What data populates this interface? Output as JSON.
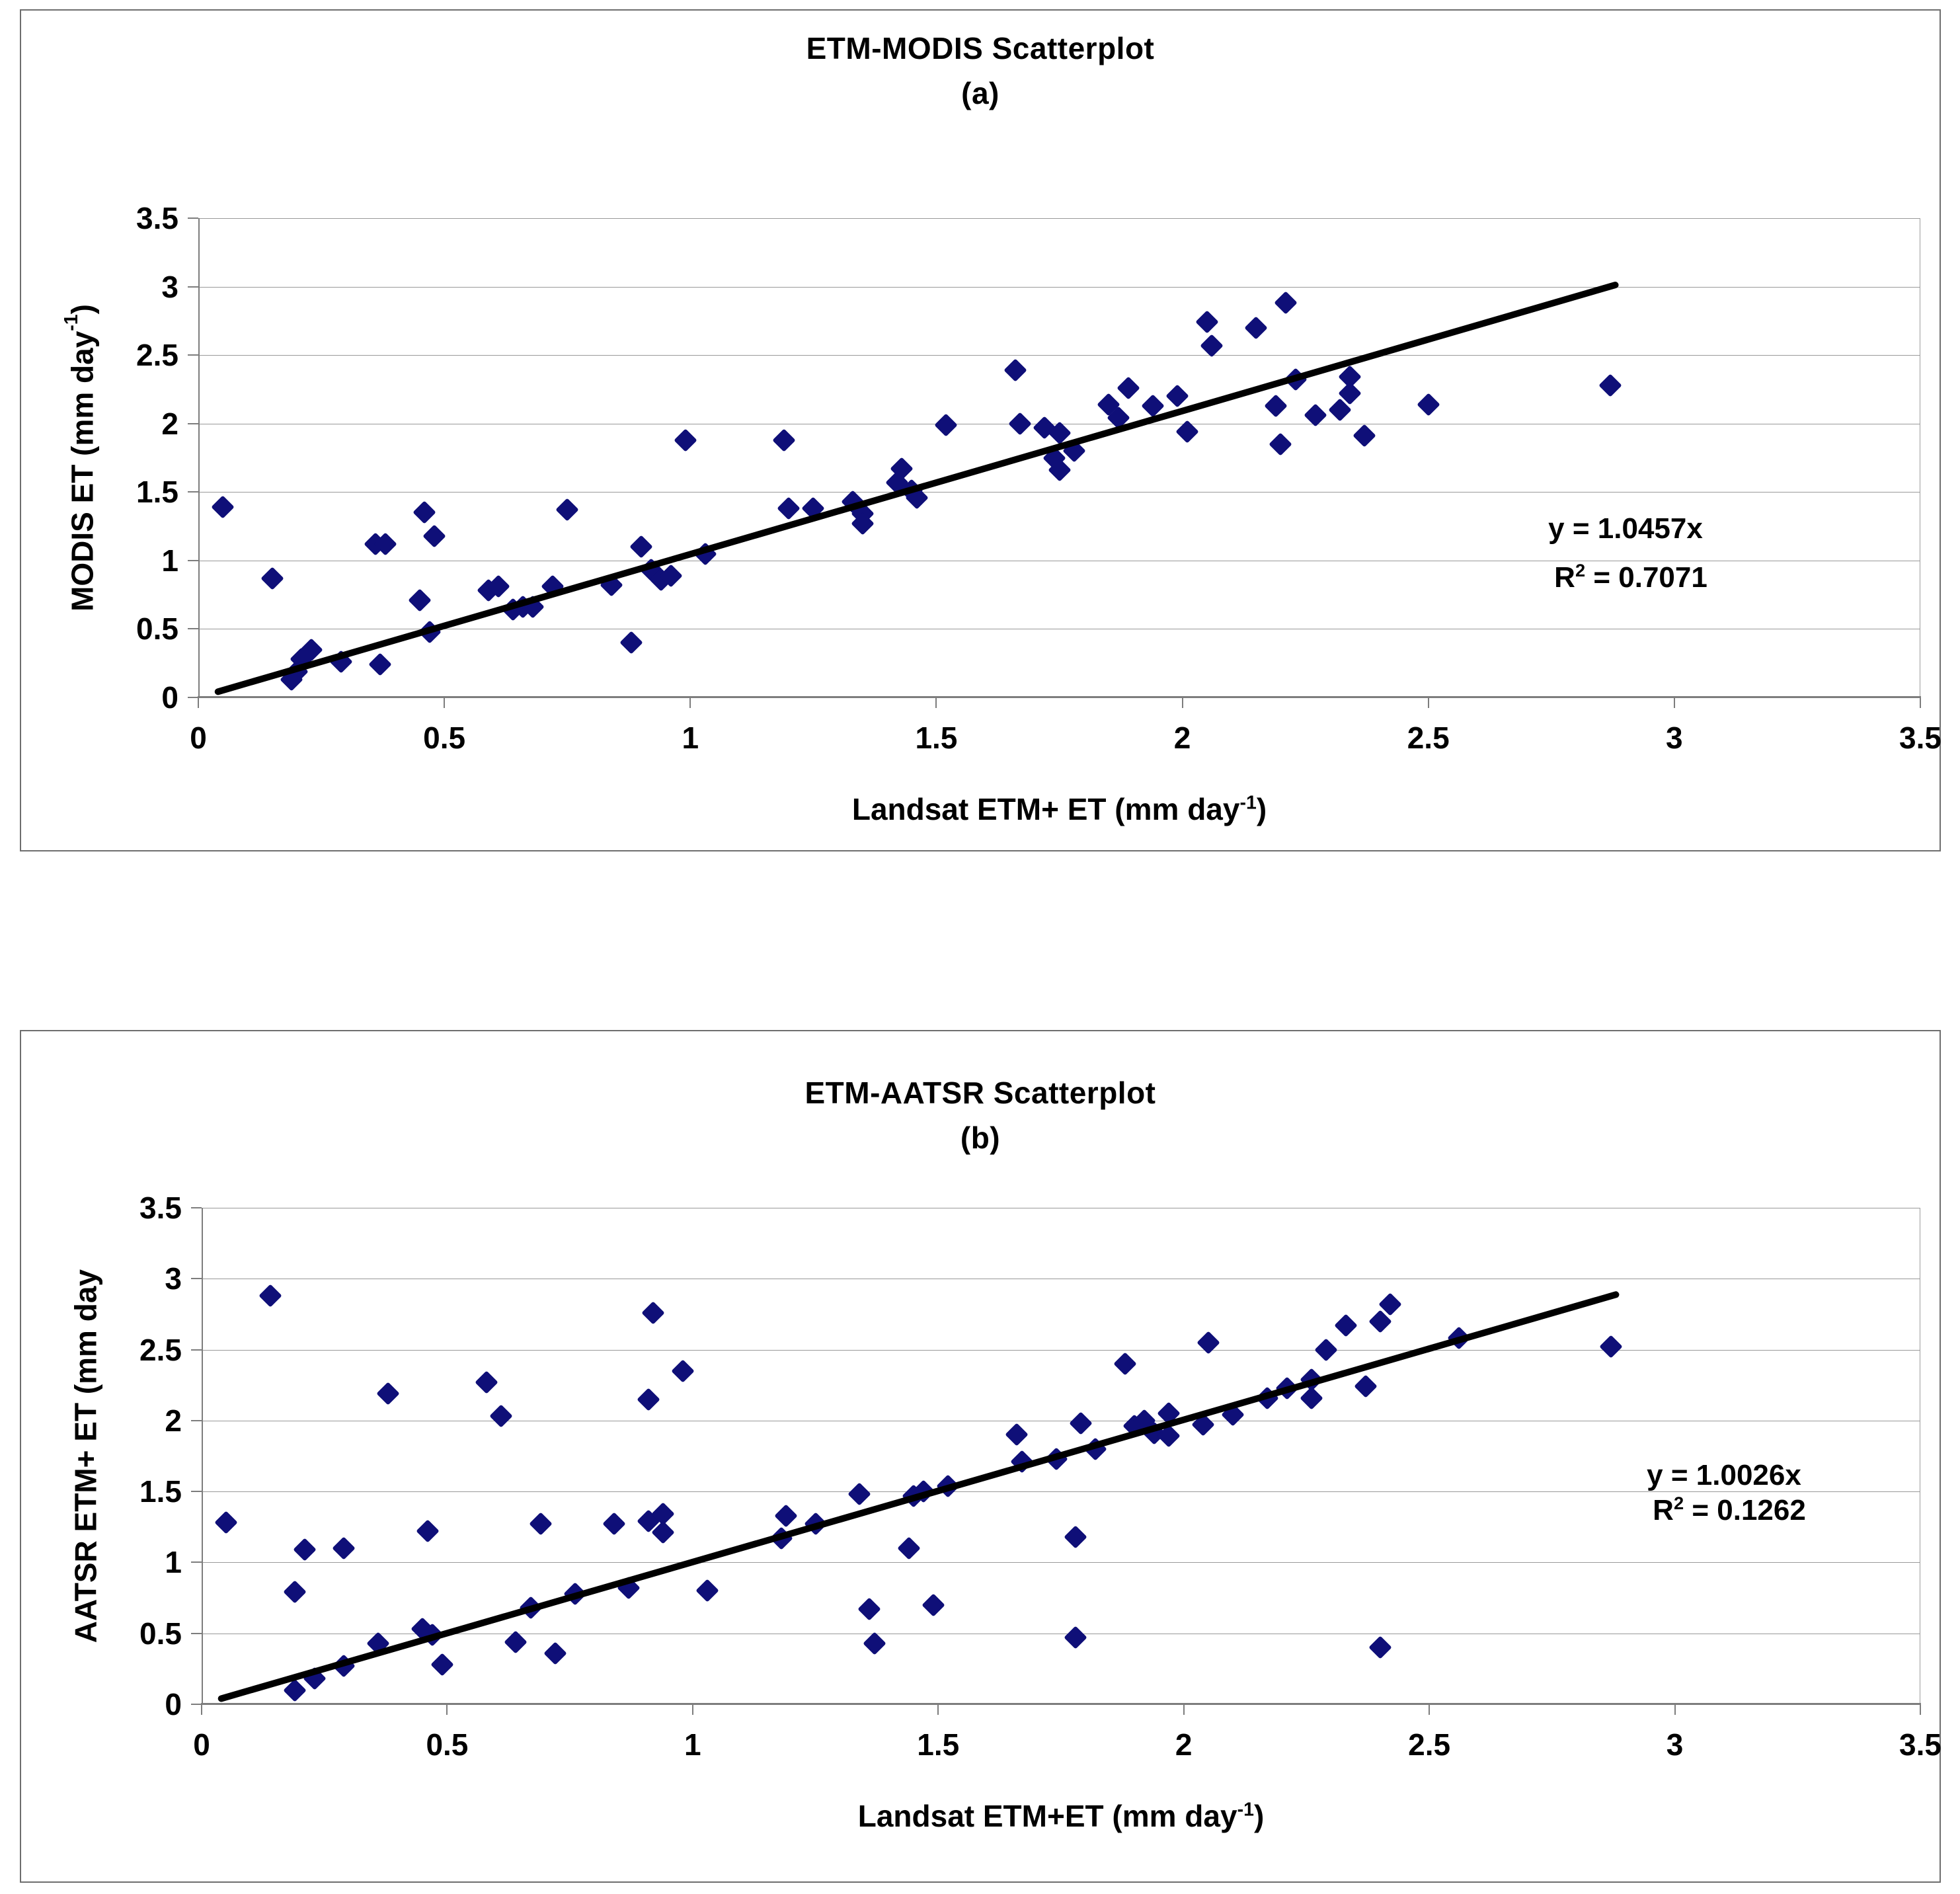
{
  "chart_data": [
    {
      "type": "scatter",
      "title": "ETM-MODIS Scatterplot",
      "subtitle": "(a)",
      "xlabel_main": "Landsat ETM+ ET (mm day",
      "xlabel_sup": "-1",
      "xlabel_close": ")",
      "ylabel_main": "MODIS ET (mm day",
      "ylabel_sup": "-1",
      "ylabel_close": ")",
      "equation": "y = 1.0457x",
      "r2_prefix": "R",
      "r2_sup": "2",
      "r2_suffix": " = 0.7071",
      "marker_color": "#0F0F78",
      "trend_color": "#000000",
      "axis": {
        "min": 0,
        "max": 3.5,
        "step": 0.5,
        "ticks": [
          "0",
          "0.5",
          "1",
          "1.5",
          "2",
          "2.5",
          "3",
          "3.5"
        ],
        "grid": "horizontal",
        "xlim": [
          0,
          3.5
        ],
        "ylim": [
          0,
          3.5
        ]
      },
      "trendline": {
        "x1": 0.04,
        "y1": 0.042,
        "x2": 2.88,
        "y2": 3.012,
        "slope": 1.0457,
        "r2": 0.7071
      },
      "points": [
        [
          0.05,
          1.39
        ],
        [
          0.15,
          0.87
        ],
        [
          0.19,
          0.13
        ],
        [
          0.2,
          0.19
        ],
        [
          0.21,
          0.28
        ],
        [
          0.23,
          0.35
        ],
        [
          0.29,
          0.26
        ],
        [
          0.37,
          0.24
        ],
        [
          0.36,
          1.12
        ],
        [
          0.38,
          1.12
        ],
        [
          0.45,
          0.71
        ],
        [
          0.46,
          1.35
        ],
        [
          0.48,
          1.18
        ],
        [
          0.47,
          0.48
        ],
        [
          0.59,
          0.78
        ],
        [
          0.61,
          0.81
        ],
        [
          0.64,
          0.64
        ],
        [
          0.66,
          0.66
        ],
        [
          0.68,
          0.66
        ],
        [
          0.72,
          0.81
        ],
        [
          0.75,
          1.37
        ],
        [
          0.84,
          0.82
        ],
        [
          0.88,
          0.4
        ],
        [
          0.9,
          1.1
        ],
        [
          0.92,
          0.93
        ],
        [
          0.94,
          0.86
        ],
        [
          0.96,
          0.89
        ],
        [
          0.99,
          1.88
        ],
        [
          1.03,
          1.05
        ],
        [
          1.19,
          1.88
        ],
        [
          1.2,
          1.38
        ],
        [
          1.25,
          1.38
        ],
        [
          1.33,
          1.43
        ],
        [
          1.35,
          1.34
        ],
        [
          1.35,
          1.27
        ],
        [
          1.42,
          1.57
        ],
        [
          1.43,
          1.67
        ],
        [
          1.45,
          1.51
        ],
        [
          1.46,
          1.46
        ],
        [
          1.52,
          1.99
        ],
        [
          1.66,
          2.39
        ],
        [
          1.67,
          2.0
        ],
        [
          1.72,
          1.97
        ],
        [
          1.74,
          1.75
        ],
        [
          1.75,
          1.93
        ],
        [
          1.75,
          1.66
        ],
        [
          1.78,
          1.8
        ],
        [
          1.85,
          2.14
        ],
        [
          1.87,
          2.04
        ],
        [
          1.89,
          2.26
        ],
        [
          1.94,
          2.13
        ],
        [
          1.99,
          2.2
        ],
        [
          2.01,
          1.94
        ],
        [
          2.05,
          2.74
        ],
        [
          2.06,
          2.57
        ],
        [
          2.15,
          2.7
        ],
        [
          2.21,
          2.88
        ],
        [
          2.19,
          2.13
        ],
        [
          2.2,
          1.85
        ],
        [
          2.23,
          2.32
        ],
        [
          2.27,
          2.06
        ],
        [
          2.32,
          2.1
        ],
        [
          2.34,
          2.34
        ],
        [
          2.34,
          2.22
        ],
        [
          2.37,
          1.91
        ],
        [
          2.5,
          2.14
        ],
        [
          2.87,
          2.28
        ]
      ]
    },
    {
      "type": "scatter",
      "title": "ETM-AATSR Scatterplot",
      "subtitle": "(b)",
      "xlabel_main": "Landsat ETM+ET (mm day",
      "xlabel_sup": "-1",
      "xlabel_close": ")",
      "ylabel_main": "AATSR ETM+ ET (mm day",
      "ylabel_sup": "",
      "ylabel_close": "",
      "equation": "y = 1.0026x",
      "r2_prefix": "R",
      "r2_sup": "2",
      "r2_suffix": " = 0.1262",
      "marker_color": "#0F0F78",
      "trend_color": "#000000",
      "axis": {
        "min": 0,
        "max": 3.5,
        "step": 0.5,
        "ticks": [
          "0",
          "0.5",
          "1",
          "1.5",
          "2",
          "2.5",
          "3",
          "3.5"
        ],
        "grid": "horizontal",
        "xlim": [
          0,
          3.5
        ],
        "ylim": [
          0,
          3.5
        ]
      },
      "trendline": {
        "x1": 0.04,
        "y1": 0.04,
        "x2": 2.88,
        "y2": 2.888,
        "slope": 1.0026,
        "r2": 0.1262
      },
      "points": [
        [
          0.05,
          1.28
        ],
        [
          0.14,
          2.88
        ],
        [
          0.19,
          0.1
        ],
        [
          0.19,
          0.79
        ],
        [
          0.21,
          1.09
        ],
        [
          0.23,
          0.18
        ],
        [
          0.29,
          0.27
        ],
        [
          0.29,
          1.1
        ],
        [
          0.36,
          0.43
        ],
        [
          0.38,
          2.19
        ],
        [
          0.45,
          0.53
        ],
        [
          0.47,
          0.49
        ],
        [
          0.46,
          1.22
        ],
        [
          0.49,
          0.28
        ],
        [
          0.58,
          2.27
        ],
        [
          0.61,
          2.03
        ],
        [
          0.64,
          0.44
        ],
        [
          0.67,
          0.68
        ],
        [
          0.69,
          1.27
        ],
        [
          0.72,
          0.36
        ],
        [
          0.76,
          0.78
        ],
        [
          0.84,
          1.27
        ],
        [
          0.87,
          0.82
        ],
        [
          0.91,
          2.15
        ],
        [
          0.92,
          2.76
        ],
        [
          0.91,
          1.29
        ],
        [
          0.94,
          1.34
        ],
        [
          0.94,
          1.21
        ],
        [
          0.98,
          2.35
        ],
        [
          1.03,
          0.8
        ],
        [
          1.18,
          1.17
        ],
        [
          1.19,
          1.33
        ],
        [
          1.25,
          1.27
        ],
        [
          1.34,
          1.48
        ],
        [
          1.36,
          0.67
        ],
        [
          1.37,
          0.43
        ],
        [
          1.44,
          1.1
        ],
        [
          1.45,
          1.47
        ],
        [
          1.47,
          1.5
        ],
        [
          1.49,
          0.7
        ],
        [
          1.52,
          1.54
        ],
        [
          1.66,
          1.9
        ],
        [
          1.67,
          1.71
        ],
        [
          1.74,
          1.73
        ],
        [
          1.78,
          1.18
        ],
        [
          1.78,
          0.47
        ],
        [
          1.79,
          1.98
        ],
        [
          1.82,
          1.8
        ],
        [
          1.88,
          2.4
        ],
        [
          1.9,
          1.96
        ],
        [
          1.92,
          2.0
        ],
        [
          1.94,
          1.91
        ],
        [
          1.97,
          2.05
        ],
        [
          1.97,
          1.89
        ],
        [
          2.04,
          1.97
        ],
        [
          2.05,
          2.55
        ],
        [
          2.1,
          2.04
        ],
        [
          2.17,
          2.16
        ],
        [
          2.21,
          2.23
        ],
        [
          2.26,
          2.29
        ],
        [
          2.26,
          2.16
        ],
        [
          2.29,
          2.5
        ],
        [
          2.33,
          2.67
        ],
        [
          2.37,
          2.24
        ],
        [
          2.4,
          2.7
        ],
        [
          2.42,
          2.82
        ],
        [
          2.4,
          0.4
        ],
        [
          2.56,
          2.58
        ],
        [
          2.87,
          2.52
        ]
      ]
    }
  ],
  "equation_positions": [
    {
      "eq_x": 2159,
      "eq_y": 470,
      "r2_x": 2167,
      "r2_y": 543
    },
    {
      "eq_x": 2303,
      "eq_y": 405,
      "r2_x": 2311,
      "r2_y": 457
    }
  ]
}
